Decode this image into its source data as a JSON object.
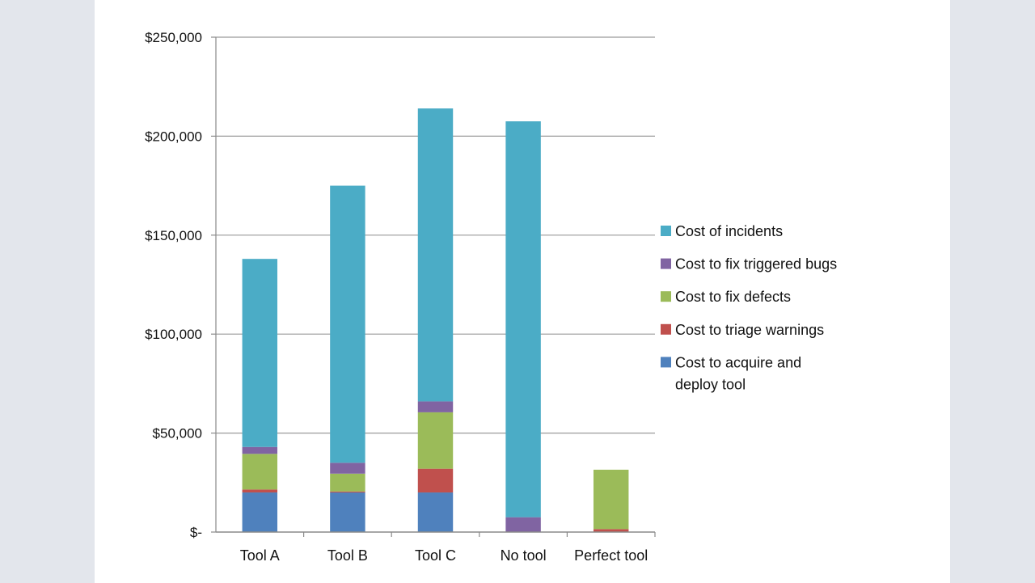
{
  "chart_data": {
    "type": "bar",
    "stacked": true,
    "title": "",
    "xlabel": "",
    "ylabel": "",
    "ylim": [
      0,
      250000
    ],
    "yticks": [
      0,
      50000,
      100000,
      150000,
      200000,
      250000
    ],
    "ytick_labels": [
      "$-",
      "$50,000",
      "$100,000",
      "$150,000",
      "$200,000",
      "$250,000"
    ],
    "grid": true,
    "legend_position": "right",
    "categories": [
      "Tool A",
      "Tool B",
      "Tool C",
      "No tool",
      "Perfect tool"
    ],
    "series": [
      {
        "name": "Cost to acquire and deploy tool",
        "color": "#4f81bd",
        "values": [
          20000,
          20000,
          20000,
          0,
          0
        ]
      },
      {
        "name": "Cost to triage warnings",
        "color": "#c0504d",
        "values": [
          1500,
          500,
          12000,
          0,
          1500
        ]
      },
      {
        "name": "Cost to fix defects",
        "color": "#9bbb59",
        "values": [
          18000,
          9000,
          28500,
          0,
          30000
        ]
      },
      {
        "name": "Cost to fix triggered bugs",
        "color": "#8064a2",
        "values": [
          3500,
          5500,
          5500,
          7500,
          0
        ]
      },
      {
        "name": "Cost of incidents",
        "color": "#4bacc6",
        "values": [
          95000,
          140000,
          148000,
          200000,
          0
        ]
      }
    ],
    "legend_order": [
      4,
      3,
      2,
      1,
      0
    ],
    "legend_lines": [
      [
        "Cost of incidents"
      ],
      [
        "Cost to fix triggered bugs"
      ],
      [
        "Cost to fix defects"
      ],
      [
        "Cost to triage warnings"
      ],
      [
        "Cost to acquire and",
        "deploy tool"
      ]
    ]
  }
}
